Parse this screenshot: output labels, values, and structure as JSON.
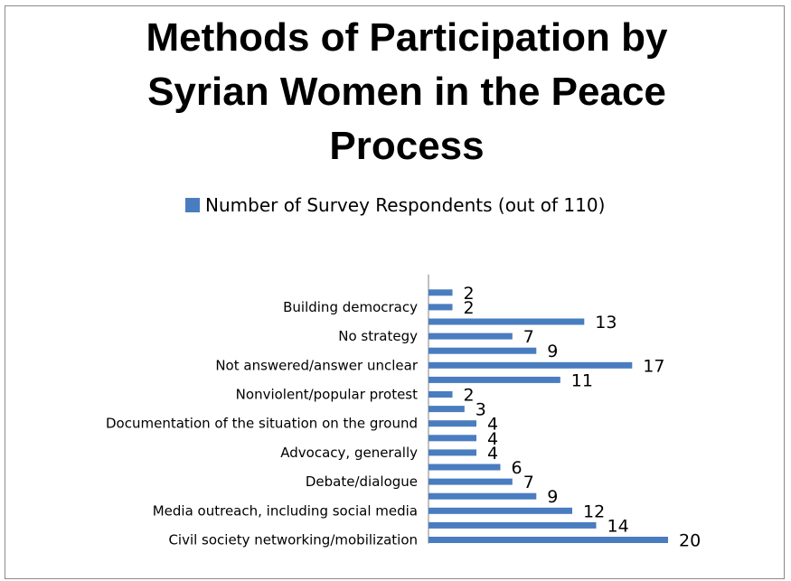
{
  "chart_data": {
    "type": "bar",
    "orientation": "horizontal",
    "title": "Methods of Participation by\nSyrian Women in the Peace\nProcess",
    "legend_position": "top",
    "grid": false,
    "series": [
      {
        "name": "Number of Survey Respondents (out of 110)",
        "color": "#4a7cc0",
        "values": [
          20,
          14,
          12,
          9,
          7,
          6,
          4,
          4,
          4,
          3,
          2,
          11,
          17,
          9,
          7,
          13,
          2,
          2
        ]
      }
    ],
    "tick_labels": [
      {
        "index": 0,
        "label": "Civil society networking/mobilization"
      },
      {
        "index": 2,
        "label": "Media outreach, including social media"
      },
      {
        "index": 4,
        "label": "Debate/dialogue"
      },
      {
        "index": 6,
        "label": "Advocacy, generally"
      },
      {
        "index": 8,
        "label": "Documentation of the situation on the ground"
      },
      {
        "index": 10,
        "label": "Nonviolent/popular protest"
      },
      {
        "index": 12,
        "label": "Not answered/answer unclear"
      },
      {
        "index": 14,
        "label": "No strategy"
      },
      {
        "index": 16,
        "label": "Building democracy"
      }
    ]
  }
}
